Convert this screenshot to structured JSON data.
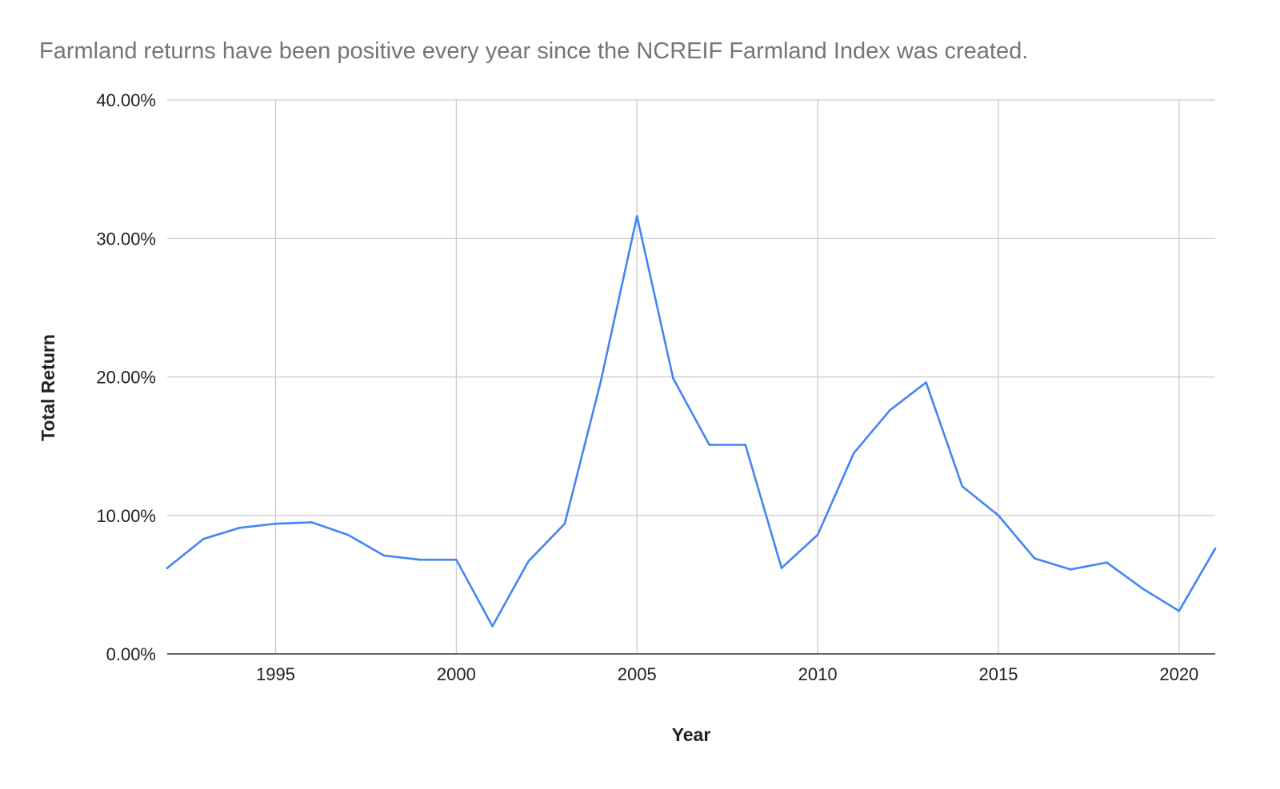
{
  "chart_data": {
    "type": "line",
    "title": "Farmland returns have been positive every year since the NCREIF Farmland Index was created.",
    "xlabel": "Year",
    "ylabel": "Total Return",
    "xlim": [
      1992,
      2021
    ],
    "ylim": [
      0,
      40
    ],
    "x_ticks": [
      1995,
      2000,
      2005,
      2010,
      2015,
      2020
    ],
    "x_tick_labels": [
      "1995",
      "2000",
      "2005",
      "2010",
      "2015",
      "2020"
    ],
    "y_ticks": [
      0,
      10,
      20,
      30,
      40
    ],
    "y_tick_labels": [
      "0.00%",
      "10.00%",
      "20.00%",
      "30.00%",
      "40.00%"
    ],
    "grid": true,
    "legend": "none",
    "series": [
      {
        "color": "#4285f4",
        "x": [
          1992,
          1993,
          1994,
          1995,
          1996,
          1997,
          1998,
          1999,
          2000,
          2001,
          2002,
          2003,
          2004,
          2005,
          2006,
          2007,
          2008,
          2009,
          2010,
          2011,
          2012,
          2013,
          2014,
          2015,
          2016,
          2017,
          2018,
          2019,
          2020,
          2021
        ],
        "values": [
          6.2,
          8.3,
          9.1,
          9.4,
          9.5,
          8.6,
          7.1,
          6.8,
          6.8,
          2.0,
          6.7,
          9.4,
          19.7,
          31.6,
          19.9,
          15.1,
          15.1,
          6.2,
          8.6,
          14.5,
          17.6,
          19.6,
          12.1,
          10.0,
          6.9,
          6.1,
          6.6,
          4.7,
          3.1,
          7.6
        ]
      }
    ]
  }
}
